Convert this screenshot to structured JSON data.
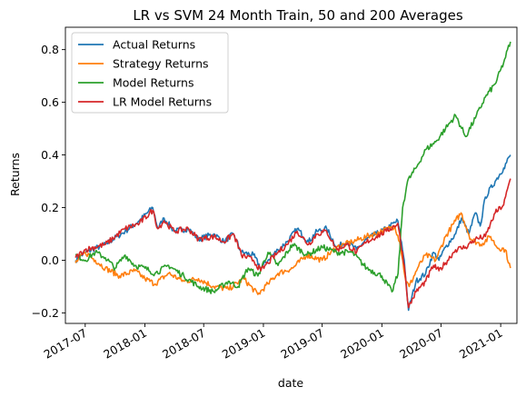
{
  "chart_data": {
    "type": "line",
    "title": "LR vs SVM 24 Month Train, 50 and 200 Averages",
    "xlabel": "date",
    "ylabel": "Returns",
    "x_range": [
      "2017-05-01",
      "2021-02-20"
    ],
    "ylim": [
      -0.24,
      0.885
    ],
    "x_ticks": [
      "2017-07",
      "2018-01",
      "2018-07",
      "2019-01",
      "2019-07",
      "2020-01",
      "2020-07",
      "2021-01"
    ],
    "y_ticks": [
      -0.2,
      0.0,
      0.2,
      0.4,
      0.6,
      0.8
    ],
    "y_tick_labels": [
      "−0.2",
      "0.0",
      "0.2",
      "0.4",
      "0.6",
      "0.8"
    ],
    "grid": false,
    "legend": "top-left",
    "series": [
      {
        "name": "Actual Returns",
        "color": "#1f77b4",
        "points": [
          [
            "2017-06-01",
            0.0
          ],
          [
            "2017-07-01",
            0.03
          ],
          [
            "2017-09-01",
            0.06
          ],
          [
            "2017-11-01",
            0.11
          ],
          [
            "2017-12-15",
            0.15
          ],
          [
            "2018-01-25",
            0.2
          ],
          [
            "2018-02-10",
            0.12
          ],
          [
            "2018-03-01",
            0.16
          ],
          [
            "2018-04-01",
            0.11
          ],
          [
            "2018-05-15",
            0.12
          ],
          [
            "2018-06-15",
            0.08
          ],
          [
            "2018-08-01",
            0.1
          ],
          [
            "2018-09-01",
            0.07
          ],
          [
            "2018-10-01",
            0.1
          ],
          [
            "2018-10-25",
            0.03
          ],
          [
            "2018-12-01",
            0.02
          ],
          [
            "2018-12-24",
            -0.03
          ],
          [
            "2019-01-15",
            0.0
          ],
          [
            "2019-02-15",
            0.04
          ],
          [
            "2019-03-15",
            0.07
          ],
          [
            "2019-04-15",
            0.12
          ],
          [
            "2019-05-20",
            0.07
          ],
          [
            "2019-06-15",
            0.11
          ],
          [
            "2019-07-15",
            0.12
          ],
          [
            "2019-08-15",
            0.05
          ],
          [
            "2019-09-15",
            0.07
          ],
          [
            "2019-10-15",
            0.04
          ],
          [
            "2019-11-15",
            0.08
          ],
          [
            "2019-12-15",
            0.1
          ],
          [
            "2020-01-15",
            0.12
          ],
          [
            "2020-02-19",
            0.15
          ],
          [
            "2020-03-10",
            0.0
          ],
          [
            "2020-03-23",
            -0.19
          ],
          [
            "2020-04-15",
            -0.08
          ],
          [
            "2020-05-15",
            -0.05
          ],
          [
            "2020-06-08",
            0.03
          ],
          [
            "2020-06-25",
            0.0
          ],
          [
            "2020-07-15",
            0.05
          ],
          [
            "2020-08-15",
            0.1
          ],
          [
            "2020-09-02",
            0.16
          ],
          [
            "2020-09-25",
            0.1
          ],
          [
            "2020-10-15",
            0.18
          ],
          [
            "2020-10-30",
            0.13
          ],
          [
            "2020-11-15",
            0.24
          ],
          [
            "2020-12-15",
            0.3
          ],
          [
            "2021-01-10",
            0.35
          ],
          [
            "2021-01-31",
            0.4
          ]
        ]
      },
      {
        "name": "Strategy Returns",
        "color": "#ff7f0e",
        "points": [
          [
            "2017-06-01",
            -0.01
          ],
          [
            "2017-07-01",
            0.03
          ],
          [
            "2017-08-01",
            0.0
          ],
          [
            "2017-09-01",
            -0.03
          ],
          [
            "2017-10-15",
            -0.06
          ],
          [
            "2017-12-01",
            -0.04
          ],
          [
            "2018-01-01",
            -0.07
          ],
          [
            "2018-02-01",
            -0.09
          ],
          [
            "2018-03-15",
            -0.05
          ],
          [
            "2018-05-01",
            -0.08
          ],
          [
            "2018-06-15",
            -0.07
          ],
          [
            "2018-08-01",
            -0.1
          ],
          [
            "2018-09-15",
            -0.11
          ],
          [
            "2018-11-01",
            -0.07
          ],
          [
            "2018-12-15",
            -0.13
          ],
          [
            "2019-01-15",
            -0.09
          ],
          [
            "2019-02-15",
            -0.05
          ],
          [
            "2019-04-01",
            -0.03
          ],
          [
            "2019-05-15",
            0.02
          ],
          [
            "2019-07-01",
            0.0
          ],
          [
            "2019-08-15",
            0.05
          ],
          [
            "2019-10-01",
            0.07
          ],
          [
            "2019-11-15",
            0.09
          ],
          [
            "2020-01-01",
            0.11
          ],
          [
            "2020-02-10",
            0.13
          ],
          [
            "2020-02-25",
            0.07
          ],
          [
            "2020-03-15",
            -0.08
          ],
          [
            "2020-03-25",
            -0.1
          ],
          [
            "2020-04-20",
            -0.03
          ],
          [
            "2020-05-15",
            0.02
          ],
          [
            "2020-06-15",
            0.0
          ],
          [
            "2020-07-15",
            0.09
          ],
          [
            "2020-08-15",
            0.15
          ],
          [
            "2020-09-01",
            0.18
          ],
          [
            "2020-10-01",
            0.08
          ],
          [
            "2020-11-01",
            0.06
          ],
          [
            "2020-12-01",
            0.09
          ],
          [
            "2020-12-20",
            0.05
          ],
          [
            "2021-01-15",
            0.04
          ],
          [
            "2021-01-31",
            -0.03
          ]
        ]
      },
      {
        "name": "Model Returns",
        "color": "#2ca02c",
        "points": [
          [
            "2017-06-01",
            0.02
          ],
          [
            "2017-07-01",
            0.0
          ],
          [
            "2017-08-01",
            0.03
          ],
          [
            "2017-09-01",
            0.01
          ],
          [
            "2017-10-01",
            -0.03
          ],
          [
            "2017-11-01",
            0.02
          ],
          [
            "2017-12-01",
            -0.02
          ],
          [
            "2018-01-01",
            -0.03
          ],
          [
            "2018-02-01",
            -0.05
          ],
          [
            "2018-03-15",
            -0.02
          ],
          [
            "2018-05-01",
            -0.06
          ],
          [
            "2018-06-15",
            -0.1
          ],
          [
            "2018-08-01",
            -0.12
          ],
          [
            "2018-09-15",
            -0.08
          ],
          [
            "2018-10-15",
            -0.1
          ],
          [
            "2018-11-15",
            -0.03
          ],
          [
            "2018-12-15",
            -0.06
          ],
          [
            "2019-01-15",
            0.03
          ],
          [
            "2019-02-15",
            -0.02
          ],
          [
            "2019-04-01",
            0.06
          ],
          [
            "2019-05-15",
            0.02
          ],
          [
            "2019-07-01",
            0.05
          ],
          [
            "2019-08-15",
            0.03
          ],
          [
            "2019-10-01",
            0.03
          ],
          [
            "2019-11-15",
            -0.03
          ],
          [
            "2020-01-01",
            -0.06
          ],
          [
            "2020-02-01",
            -0.12
          ],
          [
            "2020-02-20",
            -0.05
          ],
          [
            "2020-03-05",
            0.2
          ],
          [
            "2020-03-20",
            0.3
          ],
          [
            "2020-04-15",
            0.35
          ],
          [
            "2020-05-15",
            0.42
          ],
          [
            "2020-06-15",
            0.45
          ],
          [
            "2020-07-15",
            0.5
          ],
          [
            "2020-08-15",
            0.55
          ],
          [
            "2020-09-15",
            0.47
          ],
          [
            "2020-10-15",
            0.54
          ],
          [
            "2020-11-15",
            0.62
          ],
          [
            "2020-12-15",
            0.67
          ],
          [
            "2021-01-10",
            0.75
          ],
          [
            "2021-01-31",
            0.83
          ]
        ]
      },
      {
        "name": "LR Model Returns",
        "color": "#d62728",
        "points": [
          [
            "2017-06-01",
            0.01
          ],
          [
            "2017-07-01",
            0.04
          ],
          [
            "2017-09-01",
            0.06
          ],
          [
            "2017-11-01",
            0.12
          ],
          [
            "2017-12-15",
            0.14
          ],
          [
            "2018-01-25",
            0.19
          ],
          [
            "2018-02-10",
            0.12
          ],
          [
            "2018-03-01",
            0.15
          ],
          [
            "2018-04-01",
            0.11
          ],
          [
            "2018-05-15",
            0.12
          ],
          [
            "2018-06-15",
            0.08
          ],
          [
            "2018-08-01",
            0.09
          ],
          [
            "2018-09-01",
            0.07
          ],
          [
            "2018-10-01",
            0.1
          ],
          [
            "2018-10-25",
            0.02
          ],
          [
            "2018-12-01",
            0.0
          ],
          [
            "2018-12-24",
            -0.04
          ],
          [
            "2019-01-15",
            -0.01
          ],
          [
            "2019-02-15",
            0.03
          ],
          [
            "2019-03-15",
            0.06
          ],
          [
            "2019-04-15",
            0.11
          ],
          [
            "2019-05-20",
            0.06
          ],
          [
            "2019-06-15",
            0.1
          ],
          [
            "2019-07-15",
            0.11
          ],
          [
            "2019-08-15",
            0.04
          ],
          [
            "2019-09-15",
            0.06
          ],
          [
            "2019-10-15",
            0.03
          ],
          [
            "2019-11-15",
            0.07
          ],
          [
            "2019-12-15",
            0.09
          ],
          [
            "2020-01-15",
            0.11
          ],
          [
            "2020-02-19",
            0.14
          ],
          [
            "2020-03-10",
            -0.02
          ],
          [
            "2020-03-23",
            -0.18
          ],
          [
            "2020-04-15",
            -0.12
          ],
          [
            "2020-05-15",
            -0.08
          ],
          [
            "2020-06-08",
            -0.02
          ],
          [
            "2020-06-25",
            -0.04
          ],
          [
            "2020-07-15",
            -0.01
          ],
          [
            "2020-08-15",
            0.04
          ],
          [
            "2020-09-15",
            0.05
          ],
          [
            "2020-10-15",
            0.08
          ],
          [
            "2020-11-15",
            0.09
          ],
          [
            "2020-12-15",
            0.18
          ],
          [
            "2021-01-10",
            0.21
          ],
          [
            "2021-01-31",
            0.31
          ]
        ]
      }
    ]
  }
}
